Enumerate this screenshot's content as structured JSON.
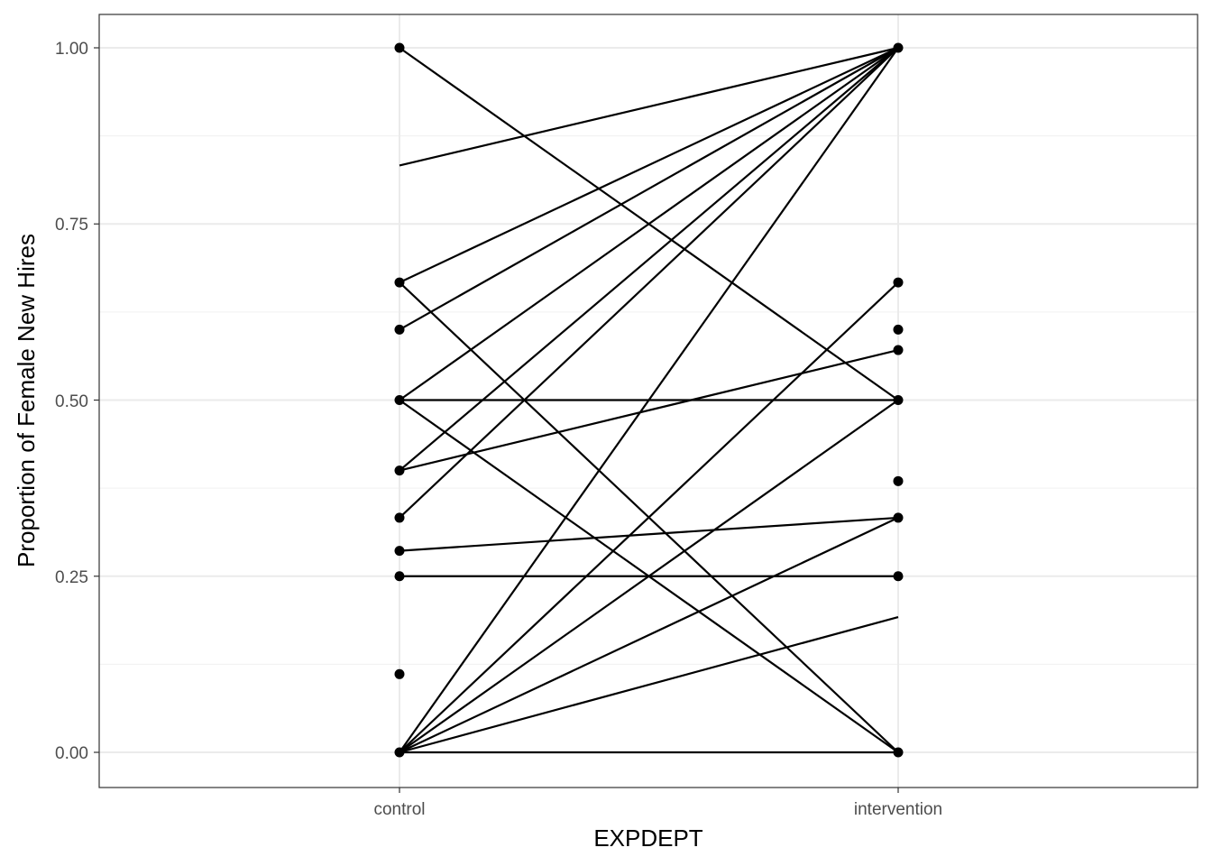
{
  "chart_data": {
    "type": "line",
    "xlabel": "EXPDEPT",
    "ylabel": "Proportion of Female New Hires",
    "categories": [
      "control",
      "intervention"
    ],
    "ylim": [
      -0.05,
      1.05
    ],
    "y_ticks": [
      "0.00",
      "0.25",
      "0.50",
      "0.75",
      "1.00"
    ],
    "grid": true,
    "segments": [
      {
        "control": 1.0,
        "intervention": 0.5
      },
      {
        "control": 0.833,
        "intervention": 1.0
      },
      {
        "control": 0.667,
        "intervention": 1.0
      },
      {
        "control": 0.667,
        "intervention": 0.0
      },
      {
        "control": 0.6,
        "intervention": 1.0
      },
      {
        "control": 0.5,
        "intervention": 1.0
      },
      {
        "control": 0.5,
        "intervention": 0.5
      },
      {
        "control": 0.5,
        "intervention": 0.0
      },
      {
        "control": 0.4,
        "intervention": 1.0
      },
      {
        "control": 0.4,
        "intervention": 0.571
      },
      {
        "control": 0.333,
        "intervention": 1.0
      },
      {
        "control": 0.286,
        "intervention": 0.333
      },
      {
        "control": 0.25,
        "intervention": 0.25
      },
      {
        "control": 0.0,
        "intervention": 1.0
      },
      {
        "control": 0.0,
        "intervention": 0.667
      },
      {
        "control": 0.0,
        "intervention": 0.5
      },
      {
        "control": 0.0,
        "intervention": 0.333
      },
      {
        "control": 0.0,
        "intervention": 0.192
      },
      {
        "control": 0.0,
        "intervention": 0.0
      }
    ],
    "points": {
      "control": [
        1.0,
        0.667,
        0.6,
        0.5,
        0.4,
        0.333,
        0.286,
        0.25,
        0.111,
        0.0
      ],
      "intervention": [
        1.0,
        0.667,
        0.6,
        0.571,
        0.5,
        0.385,
        0.333,
        0.25,
        0.0
      ]
    }
  }
}
